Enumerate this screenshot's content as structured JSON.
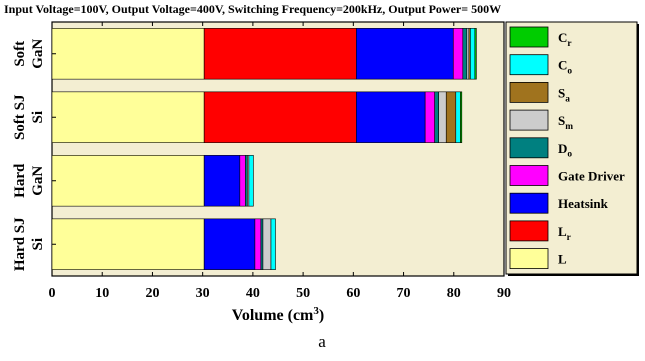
{
  "chart_data": {
    "type": "bar",
    "orientation": "horizontal",
    "stacked": true,
    "title": "Input Voltage=100V, Output Voltage=400V, Switching Frequency=200kHz, Output Power= 500W",
    "xlabel": "Volume (cm",
    "xlabel_sup": "3",
    "xlabel_close": ")",
    "ylabel": "",
    "xlim": [
      0,
      90
    ],
    "xticks": [
      "0",
      "10",
      "20",
      "30",
      "40",
      "50",
      "60",
      "70",
      "80",
      "90"
    ],
    "grid": false,
    "legend_position": "right",
    "categories": [
      {
        "top": "Soft",
        "sub": "GaN"
      },
      {
        "top": "Soft SJ",
        "sub": "Si"
      },
      {
        "top": "Hard",
        "sub": "GaN"
      },
      {
        "top": "Hard SJ",
        "sub": "Si"
      }
    ],
    "series": [
      {
        "name": "L",
        "sub": "",
        "color": "#ffff99",
        "values": [
          30.3,
          30.3,
          30.3,
          30.3
        ]
      },
      {
        "name": "L",
        "sub": "r",
        "color": "#ff0000",
        "values": [
          30.3,
          30.3,
          0,
          0
        ]
      },
      {
        "name": "Heatsink",
        "sub": "",
        "color": "#0000ff",
        "values": [
          19.3,
          13.7,
          7.1,
          10.1
        ]
      },
      {
        "name": "Gate Driver",
        "sub": "",
        "color": "#ff00ff",
        "values": [
          1.9,
          1.9,
          1.1,
          1.2
        ]
      },
      {
        "name": "D",
        "sub": "o",
        "color": "#008080",
        "values": [
          0.8,
          0.8,
          0.4,
          0.4
        ]
      },
      {
        "name": "S",
        "sub": "m",
        "color": "#cccccc",
        "values": [
          0.4,
          1.5,
          0.3,
          1.6
        ]
      },
      {
        "name": "S",
        "sub": "a",
        "color": "#a0731e",
        "values": [
          0.3,
          1.9,
          0,
          0
        ]
      },
      {
        "name": "C",
        "sub": "o",
        "color": "#00ffff",
        "values": [
          0.9,
          0.9,
          0.9,
          0.9
        ]
      },
      {
        "name": "C",
        "sub": "r",
        "color": "#00cc00",
        "values": [
          0.3,
          0.3,
          0,
          0
        ]
      }
    ],
    "legend_order": [
      8,
      7,
      6,
      5,
      4,
      3,
      2,
      1,
      0
    ]
  },
  "caption": "a",
  "colors": {
    "plot_background": "#f3eed2",
    "legend_background": "#f3eed2",
    "title_color": "#000000"
  }
}
